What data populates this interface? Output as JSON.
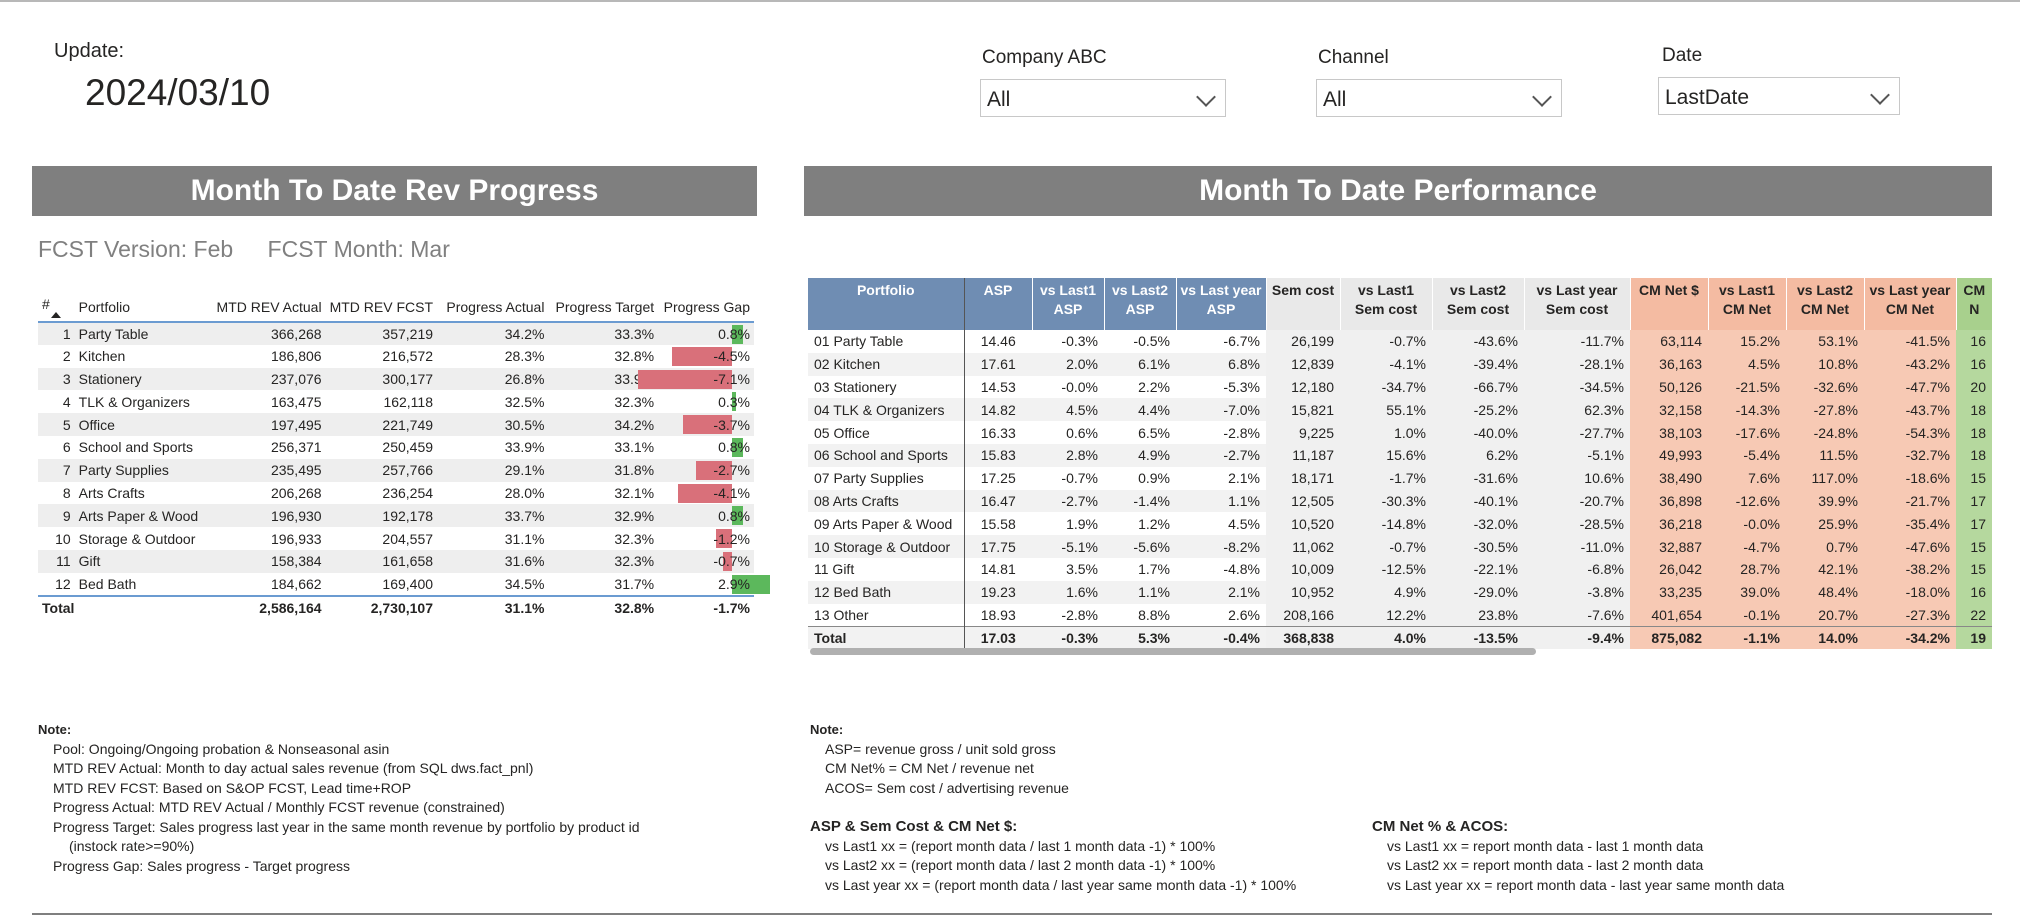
{
  "header": {
    "update_label": "Update:",
    "update_date": "2024/03/10"
  },
  "slicers": [
    {
      "label": "Company ABC",
      "value": "All"
    },
    {
      "label": "Channel",
      "value": "All"
    },
    {
      "label": "Date",
      "value": "LastDate"
    }
  ],
  "left_panel": {
    "title": "Month To Date Rev Progress",
    "fcst_version": "FCST Version: Feb",
    "fcst_month": "FCST Month: Mar",
    "columns": [
      "#",
      "Portfolio",
      "MTD REV Actual",
      "MTD REV FCST",
      "Progress Actual",
      "Progress Target",
      "Progress Gap"
    ],
    "rows": [
      {
        "n": "1",
        "portfolio": "Party Table",
        "actual": "366,268",
        "fcst": "357,219",
        "prog": "34.2%",
        "target": "33.3%",
        "gap": "0.8%",
        "gap_value": 0.8
      },
      {
        "n": "2",
        "portfolio": "Kitchen",
        "actual": "186,806",
        "fcst": "216,572",
        "prog": "28.3%",
        "target": "32.8%",
        "gap": "-4.5%",
        "gap_value": -4.5
      },
      {
        "n": "3",
        "portfolio": "Stationery",
        "actual": "237,076",
        "fcst": "300,177",
        "prog": "26.8%",
        "target": "33.9%",
        "gap": "-7.1%",
        "gap_value": -7.1
      },
      {
        "n": "4",
        "portfolio": "TLK & Organizers",
        "actual": "163,475",
        "fcst": "162,118",
        "prog": "32.5%",
        "target": "32.3%",
        "gap": "0.3%",
        "gap_value": 0.3
      },
      {
        "n": "5",
        "portfolio": "Office",
        "actual": "197,495",
        "fcst": "221,749",
        "prog": "30.5%",
        "target": "34.2%",
        "gap": "-3.7%",
        "gap_value": -3.7
      },
      {
        "n": "6",
        "portfolio": "School and Sports",
        "actual": "256,371",
        "fcst": "250,459",
        "prog": "33.9%",
        "target": "33.1%",
        "gap": "0.8%",
        "gap_value": 0.8
      },
      {
        "n": "7",
        "portfolio": "Party Supplies",
        "actual": "235,495",
        "fcst": "257,766",
        "prog": "29.1%",
        "target": "31.8%",
        "gap": "-2.7%",
        "gap_value": -2.7
      },
      {
        "n": "8",
        "portfolio": "Arts Crafts",
        "actual": "206,268",
        "fcst": "236,254",
        "prog": "28.0%",
        "target": "32.1%",
        "gap": "-4.1%",
        "gap_value": -4.1
      },
      {
        "n": "9",
        "portfolio": "Arts Paper & Wood",
        "actual": "196,930",
        "fcst": "192,178",
        "prog": "33.7%",
        "target": "32.9%",
        "gap": "0.8%",
        "gap_value": 0.8
      },
      {
        "n": "10",
        "portfolio": "Storage & Outdoor",
        "actual": "196,933",
        "fcst": "204,557",
        "prog": "31.1%",
        "target": "32.3%",
        "gap": "-1.2%",
        "gap_value": -1.2
      },
      {
        "n": "11",
        "portfolio": "Gift",
        "actual": "158,384",
        "fcst": "161,658",
        "prog": "31.6%",
        "target": "32.3%",
        "gap": "-0.7%",
        "gap_value": -0.7
      },
      {
        "n": "12",
        "portfolio": "Bed Bath",
        "actual": "184,662",
        "fcst": "169,400",
        "prog": "34.5%",
        "target": "31.7%",
        "gap": "2.9%",
        "gap_value": 2.9
      }
    ],
    "total": {
      "label": "Total",
      "actual": "2,586,164",
      "fcst": "2,730,107",
      "prog": "31.1%",
      "target": "32.8%",
      "gap": "-1.7%"
    },
    "colors": {
      "positive": "#5cb85c",
      "negative": "#d9707a"
    }
  },
  "right_panel": {
    "title": "Month To Date Performance",
    "columns": [
      {
        "line1": "Portfolio",
        "line2": ""
      },
      {
        "line1": "ASP",
        "line2": ""
      },
      {
        "line1": "vs Last1",
        "line2": "ASP"
      },
      {
        "line1": "vs Last2",
        "line2": "ASP"
      },
      {
        "line1": "vs Last year",
        "line2": "ASP"
      },
      {
        "line1": "Sem cost",
        "line2": ""
      },
      {
        "line1": "vs Last1",
        "line2": "Sem cost"
      },
      {
        "line1": "vs Last2",
        "line2": "Sem cost"
      },
      {
        "line1": "vs Last year",
        "line2": "Sem cost"
      },
      {
        "line1": "CM Net $",
        "line2": ""
      },
      {
        "line1": "vs Last1",
        "line2": "CM Net"
      },
      {
        "line1": "vs Last2",
        "line2": "CM Net"
      },
      {
        "line1": "vs Last year",
        "line2": "CM Net"
      },
      {
        "line1": "CM N",
        "line2": ""
      }
    ],
    "rows": [
      [
        "01 Party Table",
        "14.46",
        "-0.3%",
        "-0.5%",
        "-6.7%",
        "26,199",
        "-0.7%",
        "-43.6%",
        "-11.7%",
        "63,114",
        "15.2%",
        "53.1%",
        "-41.5%",
        "16"
      ],
      [
        "02 Kitchen",
        "17.61",
        "2.0%",
        "6.1%",
        "6.8%",
        "12,839",
        "-4.1%",
        "-39.4%",
        "-28.1%",
        "36,163",
        "4.5%",
        "10.8%",
        "-43.2%",
        "16"
      ],
      [
        "03 Stationery",
        "14.53",
        "-0.0%",
        "2.2%",
        "-5.3%",
        "12,180",
        "-34.7%",
        "-66.7%",
        "-34.5%",
        "50,126",
        "-21.5%",
        "-32.6%",
        "-47.7%",
        "20"
      ],
      [
        "04 TLK & Organizers",
        "14.82",
        "4.5%",
        "4.4%",
        "-7.0%",
        "15,821",
        "55.1%",
        "-25.2%",
        "62.3%",
        "32,158",
        "-14.3%",
        "-27.8%",
        "-43.7%",
        "18"
      ],
      [
        "05 Office",
        "16.33",
        "0.6%",
        "6.5%",
        "-2.8%",
        "9,225",
        "1.0%",
        "-40.0%",
        "-27.7%",
        "38,103",
        "-17.6%",
        "-24.8%",
        "-54.3%",
        "18"
      ],
      [
        "06 School and Sports",
        "15.83",
        "2.8%",
        "4.9%",
        "-2.7%",
        "11,187",
        "15.6%",
        "6.2%",
        "-5.1%",
        "49,993",
        "-5.4%",
        "11.5%",
        "-32.7%",
        "18"
      ],
      [
        "07 Party Supplies",
        "17.25",
        "-0.7%",
        "0.9%",
        "2.1%",
        "18,171",
        "-1.7%",
        "-31.6%",
        "10.6%",
        "38,490",
        "7.6%",
        "117.0%",
        "-18.6%",
        "15"
      ],
      [
        "08 Arts Crafts",
        "16.47",
        "-2.7%",
        "-1.4%",
        "1.1%",
        "12,505",
        "-30.3%",
        "-40.1%",
        "-20.7%",
        "36,898",
        "-12.6%",
        "39.9%",
        "-21.7%",
        "17"
      ],
      [
        "09 Arts Paper & Wood",
        "15.58",
        "1.9%",
        "1.2%",
        "4.5%",
        "10,520",
        "-14.8%",
        "-32.0%",
        "-28.5%",
        "36,218",
        "-0.0%",
        "25.9%",
        "-35.4%",
        "17"
      ],
      [
        "10 Storage & Outdoor",
        "17.75",
        "-5.1%",
        "-5.6%",
        "-8.2%",
        "11,062",
        "-0.7%",
        "-30.5%",
        "-11.0%",
        "32,887",
        "-4.7%",
        "0.7%",
        "-47.6%",
        "15"
      ],
      [
        "11 Gift",
        "14.81",
        "3.5%",
        "1.7%",
        "-4.8%",
        "10,009",
        "-12.5%",
        "-22.1%",
        "-6.8%",
        "26,042",
        "28.7%",
        "42.1%",
        "-38.2%",
        "15"
      ],
      [
        "12 Bed Bath",
        "19.23",
        "1.6%",
        "1.1%",
        "2.1%",
        "10,952",
        "4.9%",
        "-29.0%",
        "-3.8%",
        "33,235",
        "39.0%",
        "48.4%",
        "-18.0%",
        "16"
      ],
      [
        "13 Other",
        "18.93",
        "-2.8%",
        "8.8%",
        "2.6%",
        "208,166",
        "12.2%",
        "23.8%",
        "-7.6%",
        "401,654",
        "-0.1%",
        "20.7%",
        "-27.3%",
        "22"
      ]
    ],
    "total": [
      "Total",
      "17.03",
      "-0.3%",
      "5.3%",
      "-0.4%",
      "368,838",
      "4.0%",
      "-13.5%",
      "-9.4%",
      "875,082",
      "-1.1%",
      "14.0%",
      "-34.2%",
      "19"
    ]
  },
  "notes_left": {
    "heading": "Note:",
    "lines": [
      "Pool: Ongoing/Ongoing probation & Nonseasonal asin",
      "MTD REV Actual: Month to day actual sales revenue (from SQL dws.fact_pnl)",
      "MTD REV FCST: Based on S&OP FCST, Lead time+ROP",
      "Progress Actual: MTD REV Actual / Monthly FCST revenue (constrained)",
      "Progress Target: Sales progress last year in the same month revenue by portfolio by product id",
      "(instock rate>=90%)",
      "Progress Gap: Sales progress - Target progress"
    ]
  },
  "notes_right": {
    "heading": "Note:",
    "lines": [
      "ASP= revenue gross / unit sold gross",
      "CM Net% = CM Net / revenue net",
      "ACOS= Sem cost / advertising revenue"
    ],
    "block1_heading": "ASP & Sem Cost & CM Net $:",
    "block1_lines": [
      "vs Last1 xx = (report month data / last 1 month data -1) * 100%",
      "vs Last2 xx = (report month data / last 2 month data -1) * 100%",
      "vs Last year xx = (report month data / last year same month data -1) * 100%"
    ],
    "block2_heading": "CM Net % & ACOS:",
    "block2_lines": [
      "vs Last1 xx = report month data - last 1 month data",
      "vs Last2 xx = report month data - last 2 month data",
      "vs Last year xx = report month data - last year same month data"
    ]
  }
}
